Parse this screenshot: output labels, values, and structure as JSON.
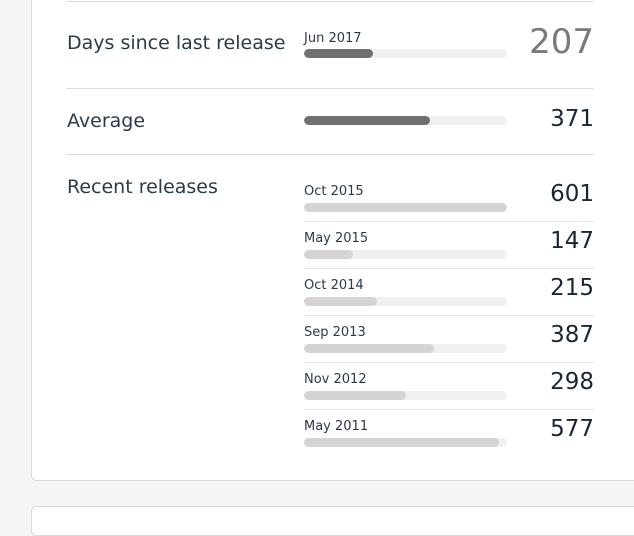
{
  "days_since_last_release": {
    "label": "Days since last release",
    "date": "Jun 2017",
    "value": "207",
    "fraction": 0.34
  },
  "average": {
    "label": "Average",
    "value": "371",
    "fraction": 0.62
  },
  "recent_releases": {
    "label": "Recent releases",
    "items": [
      {
        "date": "Oct 2015",
        "value": "601",
        "fraction": 1.0
      },
      {
        "date": "May 2015",
        "value": "147",
        "fraction": 0.24
      },
      {
        "date": "Oct 2014",
        "value": "215",
        "fraction": 0.36
      },
      {
        "date": "Sep 2013",
        "value": "387",
        "fraction": 0.64
      },
      {
        "date": "Nov 2012",
        "value": "298",
        "fraction": 0.5
      },
      {
        "date": "May 2011",
        "value": "577",
        "fraction": 0.96
      }
    ]
  }
}
